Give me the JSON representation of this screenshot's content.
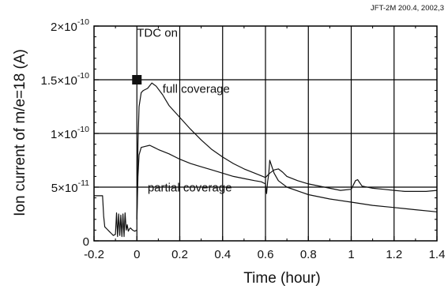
{
  "source_note": "JFT-2M 200.4, 2002,3",
  "chart_data": {
    "type": "line",
    "title": "",
    "xlabel": "Time (hour)",
    "ylabel": "Ion current of m/e=18 (A)",
    "xlim": [
      -0.2,
      1.4
    ],
    "ylim": [
      0,
      2e-10
    ],
    "grid": true,
    "x_ticks": [
      {
        "value": -0.2,
        "label": "-0.2"
      },
      {
        "value": 0,
        "label": "0"
      },
      {
        "value": 0.2,
        "label": "0.2"
      },
      {
        "value": 0.4,
        "label": "0.4"
      },
      {
        "value": 0.6,
        "label": "0.6"
      },
      {
        "value": 0.8,
        "label": "0.8"
      },
      {
        "value": 1.0,
        "label": "1"
      },
      {
        "value": 1.2,
        "label": "1.2"
      },
      {
        "value": 1.4,
        "label": "1.4"
      }
    ],
    "y_ticks": [
      {
        "value": 0,
        "base": "0",
        "exp": ""
      },
      {
        "value": 5e-11,
        "base": "5×10",
        "exp": "-11"
      },
      {
        "value": 1e-10,
        "base": "1×10",
        "exp": "-10"
      },
      {
        "value": 1.5e-10,
        "base": "1.5×10",
        "exp": "-10"
      },
      {
        "value": 2e-10,
        "base": "2×10",
        "exp": "-10"
      }
    ],
    "annotations": [
      {
        "text": "TDC on",
        "x": 0.0,
        "y": 1.9e-10
      },
      {
        "text": "full coverage",
        "x": 0.12,
        "y": 1.38e-10
      },
      {
        "text": "partial coverage",
        "x": 0.05,
        "y": 4.6e-11
      }
    ],
    "marker": {
      "x": 0.0,
      "y": 1.5e-10
    },
    "series": [
      {
        "name": "full coverage",
        "x": [
          0.0,
          0.005,
          0.01,
          0.02,
          0.03,
          0.05,
          0.07,
          0.09,
          0.12,
          0.15,
          0.2,
          0.25,
          0.3,
          0.35,
          0.4,
          0.45,
          0.5,
          0.55,
          0.6,
          0.62,
          0.64,
          0.66,
          0.68,
          0.7,
          0.75,
          0.8,
          0.85,
          0.9,
          0.95,
          1.0,
          1.02,
          1.03,
          1.05,
          1.1,
          1.15,
          1.2,
          1.25,
          1.3,
          1.35,
          1.4
        ],
        "y": [
          2e-11,
          9e-11,
          1.25e-10,
          1.38e-10,
          1.4e-10,
          1.42e-10,
          1.47e-10,
          1.44e-10,
          1.36e-10,
          1.26e-10,
          1.15e-10,
          1.04e-10,
          9.4e-11,
          8.5e-11,
          7.8e-11,
          7.2e-11,
          6.7e-11,
          6.3e-11,
          5.9e-11,
          6.3e-11,
          6.6e-11,
          6.7e-11,
          6.4e-11,
          6e-11,
          5.6e-11,
          5.3e-11,
          5.1e-11,
          4.9e-11,
          4.7e-11,
          4.8e-11,
          5.6e-11,
          5.7e-11,
          5.1e-11,
          4.9e-11,
          4.8e-11,
          4.7e-11,
          4.6e-11,
          4.6e-11,
          4.6e-11,
          4.7e-11
        ]
      },
      {
        "name": "partial coverage",
        "x": [
          0.0,
          0.005,
          0.01,
          0.02,
          0.04,
          0.06,
          0.08,
          0.1,
          0.15,
          0.2,
          0.25,
          0.3,
          0.35,
          0.4,
          0.45,
          0.5,
          0.55,
          0.58,
          0.6,
          0.605,
          0.61,
          0.615,
          0.62,
          0.64,
          0.66,
          0.7,
          0.8,
          0.9,
          1.0,
          1.1,
          1.2,
          1.3,
          1.4
        ],
        "y": [
          2e-11,
          6e-11,
          8e-11,
          8.7e-11,
          8.8e-11,
          8.9e-11,
          8.7e-11,
          8.5e-11,
          8.1e-11,
          7.6e-11,
          7.2e-11,
          6.9e-11,
          6.6e-11,
          6.3e-11,
          6e-11,
          5.8e-11,
          5.6e-11,
          5.5e-11,
          5.3e-11,
          4.4e-11,
          5.5e-11,
          6.2e-11,
          7.5e-11,
          6.3e-11,
          5.6e-11,
          5e-11,
          4.3e-11,
          3.9e-11,
          3.6e-11,
          3.3e-11,
          3.1e-11,
          2.9e-11,
          2.7e-11
        ]
      },
      {
        "name": "",
        "x": [
          -0.2,
          -0.16,
          -0.155,
          -0.15,
          -0.14,
          -0.13,
          -0.12,
          -0.11,
          -0.1,
          -0.095,
          -0.09,
          -0.085,
          -0.08,
          -0.075,
          -0.07,
          -0.065,
          -0.06,
          -0.055,
          -0.05,
          -0.045,
          -0.04,
          -0.035,
          -0.03,
          -0.02,
          -0.01,
          0.0
        ],
        "y": [
          4.2e-11,
          4.2e-11,
          2.3e-11,
          1.3e-11,
          1.1e-11,
          9e-12,
          7e-12,
          5e-12,
          6e-12,
          2.6e-11,
          4e-12,
          2.5e-11,
          5e-12,
          2.4e-11,
          4e-12,
          2.5e-11,
          4e-12,
          2.6e-11,
          1e-11,
          1.5e-11,
          9e-12,
          1.1e-11,
          1.2e-11,
          1e-11,
          9e-12,
          1e-11
        ]
      }
    ]
  }
}
